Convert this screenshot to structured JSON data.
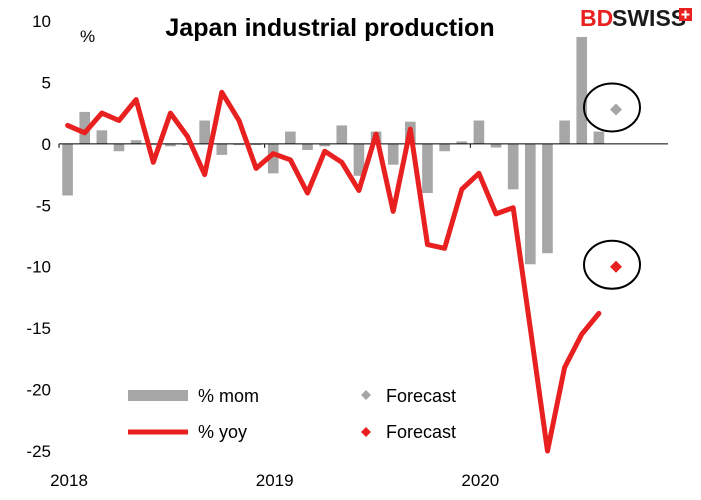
{
  "chart_data": {
    "type": "bar+line",
    "title": "Japan industrial production",
    "ylabel": "%",
    "ylim": [
      -25,
      10
    ],
    "yticks": [
      10,
      5,
      0,
      -5,
      -10,
      -15,
      -20,
      -25
    ],
    "x_start": "2018-01",
    "x_tick_labels": [
      "2018",
      "2019",
      "2020"
    ],
    "x_tick_months": [
      "2018-01",
      "2019-01",
      "2020-01"
    ],
    "months": [
      "2018-01",
      "2018-02",
      "2018-03",
      "2018-04",
      "2018-05",
      "2018-06",
      "2018-07",
      "2018-08",
      "2018-09",
      "2018-10",
      "2018-11",
      "2018-12",
      "2019-01",
      "2019-02",
      "2019-03",
      "2019-04",
      "2019-05",
      "2019-06",
      "2019-07",
      "2019-08",
      "2019-09",
      "2019-10",
      "2019-11",
      "2019-12",
      "2020-01",
      "2020-02",
      "2020-03",
      "2020-04",
      "2020-05",
      "2020-06",
      "2020-07",
      "2020-08",
      "2020-09",
      "2020-10"
    ],
    "series": [
      {
        "name": "% mom",
        "kind": "bar",
        "color": "#a6a6a6",
        "values": [
          -4.2,
          2.6,
          1.1,
          -0.6,
          0.3,
          -0.1,
          -0.2,
          -0.1,
          1.9,
          -0.9,
          -0.1,
          -0.1,
          -2.4,
          1.0,
          -0.5,
          -0.2,
          1.5,
          -2.6,
          1.0,
          -1.7,
          1.8,
          -4.0,
          -0.6,
          0.2,
          1.9,
          -0.3,
          -3.7,
          -9.8,
          -8.9,
          1.9,
          8.7,
          1.0,
          null,
          null
        ]
      },
      {
        "name": "% yoy",
        "kind": "line",
        "color": "#e8201f",
        "values": [
          1.5,
          0.9,
          2.5,
          1.9,
          3.6,
          -1.5,
          2.5,
          0.6,
          -2.5,
          4.2,
          1.9,
          -2.0,
          -0.8,
          -1.3,
          -4.0,
          -0.6,
          -1.5,
          -3.8,
          0.8,
          -5.5,
          1.2,
          -8.2,
          -8.5,
          -3.7,
          -2.4,
          -5.7,
          -5.2,
          -15.0,
          -25.9,
          -18.2,
          -15.5,
          -13.8,
          null,
          null
        ]
      },
      {
        "name": "Forecast",
        "kind": "marker",
        "color": "#a6a6a6",
        "x": "2020-09",
        "value": 2.8
      },
      {
        "name": "Forecast",
        "kind": "marker",
        "color": "#e8201f",
        "x": "2020-09",
        "value": -10.0
      }
    ],
    "annotations": [
      "circle around mom forecast",
      "circle around yoy forecast"
    ],
    "legend_placement": "bottom-center",
    "grid": false
  },
  "logo": {
    "text_bd": "BD",
    "text_swiss": "SWISS",
    "color_bd": "#e8201f",
    "color_swiss": "#1a1a1a",
    "badge_color": "#e8201f"
  }
}
